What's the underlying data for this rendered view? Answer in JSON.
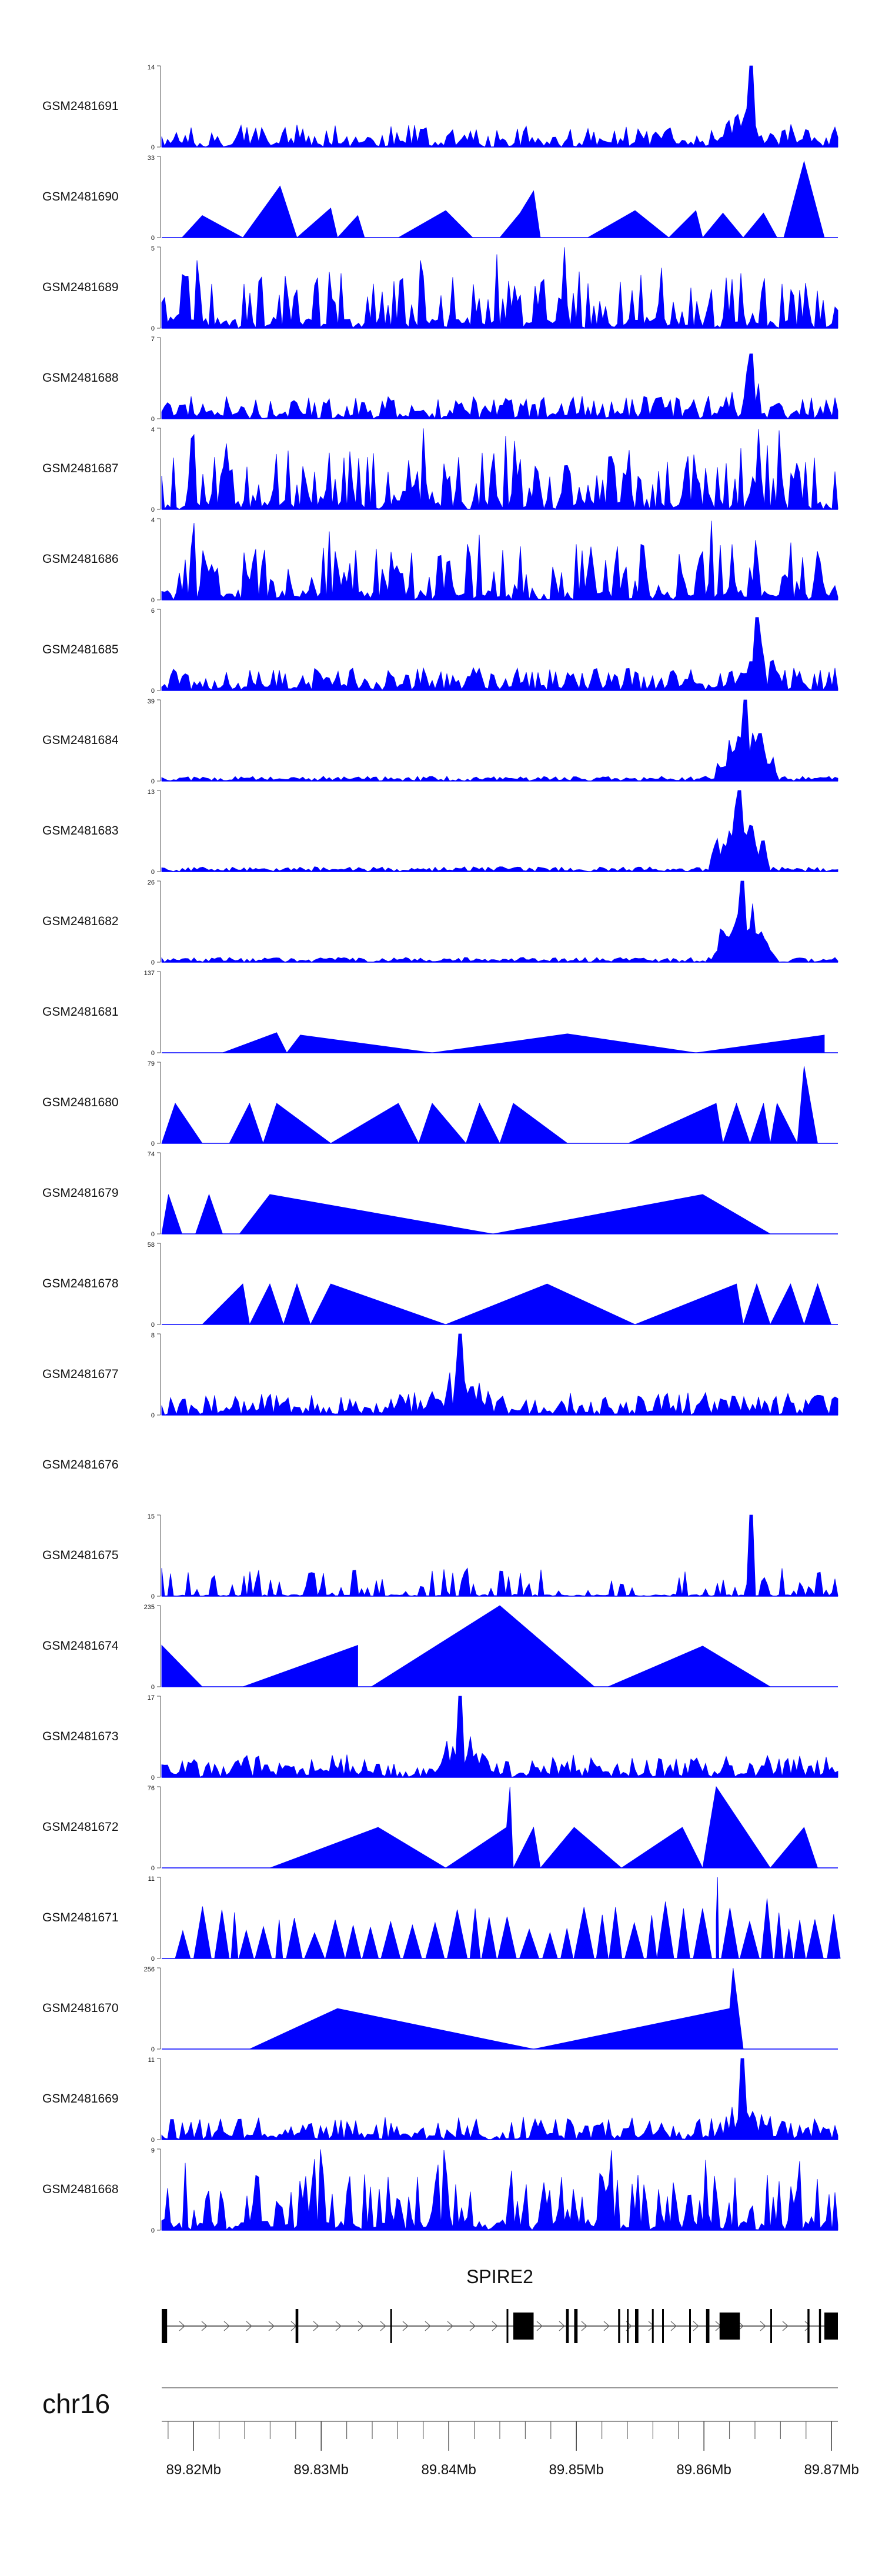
{
  "chart_data": {
    "type": "area",
    "title": "",
    "color": "#0000ff",
    "x_range": [
      89.8175,
      89.8705
    ],
    "tracks": [
      {
        "name": "GSM2481691",
        "ymax": 14,
        "profile": "dense",
        "peak_at": 0.87,
        "peak_height": 1.0
      },
      {
        "name": "GSM2481690",
        "ymax": 33,
        "profile": "tri",
        "points": [
          [
            0.03,
            0
          ],
          [
            0.06,
            9
          ],
          [
            0.12,
            0
          ],
          [
            0.175,
            21
          ],
          [
            0.2,
            0
          ],
          [
            0.25,
            12
          ],
          [
            0.26,
            0
          ],
          [
            0.29,
            9
          ],
          [
            0.3,
            0
          ],
          [
            0.35,
            0
          ],
          [
            0.42,
            11
          ],
          [
            0.46,
            0
          ],
          [
            0.5,
            0
          ],
          [
            0.53,
            10
          ],
          [
            0.55,
            19
          ],
          [
            0.56,
            0
          ],
          [
            0.6,
            0
          ],
          [
            0.63,
            0
          ],
          [
            0.7,
            11
          ],
          [
            0.75,
            0
          ],
          [
            0.79,
            11
          ],
          [
            0.8,
            0
          ],
          [
            0.83,
            10
          ],
          [
            0.86,
            0
          ],
          [
            0.89,
            10
          ],
          [
            0.91,
            0
          ],
          [
            0.92,
            0
          ],
          [
            0.95,
            31
          ],
          [
            0.98,
            0
          ]
        ]
      },
      {
        "name": "GSM2481689",
        "ymax": 5,
        "profile": "spiky"
      },
      {
        "name": "GSM2481688",
        "ymax": 7,
        "profile": "dense",
        "peak_at": 0.87,
        "peak_height": 0.8
      },
      {
        "name": "GSM2481687",
        "ymax": 4,
        "profile": "spiky"
      },
      {
        "name": "GSM2481686",
        "ymax": 4,
        "profile": "spiky"
      },
      {
        "name": "GSM2481685",
        "ymax": 6,
        "profile": "dense",
        "peak_at": 0.88,
        "peak_height": 0.9
      },
      {
        "name": "GSM2481684",
        "ymax": 39,
        "profile": "cluster",
        "peak_at": 0.865,
        "peak_height": 1.0
      },
      {
        "name": "GSM2481683",
        "ymax": 13,
        "profile": "cluster",
        "peak_at": 0.855,
        "peak_height": 1.0
      },
      {
        "name": "GSM2481682",
        "ymax": 26,
        "profile": "cluster",
        "peak_at": 0.86,
        "peak_height": 1.0
      },
      {
        "name": "GSM2481681",
        "ymax": 137,
        "profile": "tri",
        "points": [
          [
            0.09,
            0
          ],
          [
            0.17,
            34
          ],
          [
            0.185,
            0
          ],
          [
            0.205,
            30
          ],
          [
            0.4,
            0
          ],
          [
            0.6,
            32
          ],
          [
            0.79,
            0
          ],
          [
            0.98,
            30
          ]
        ]
      },
      {
        "name": "GSM2481680",
        "ymax": 79,
        "profile": "tri",
        "points": [
          [
            0,
            0
          ],
          [
            0.02,
            39
          ],
          [
            0.06,
            0
          ],
          [
            0.1,
            0
          ],
          [
            0.13,
            39
          ],
          [
            0.15,
            0
          ],
          [
            0.17,
            39
          ],
          [
            0.25,
            0
          ],
          [
            0.35,
            39
          ],
          [
            0.38,
            0
          ],
          [
            0.4,
            39
          ],
          [
            0.45,
            0
          ],
          [
            0.47,
            39
          ],
          [
            0.5,
            0
          ],
          [
            0.52,
            39
          ],
          [
            0.6,
            0
          ],
          [
            0.69,
            0
          ],
          [
            0.82,
            39
          ],
          [
            0.83,
            0
          ],
          [
            0.85,
            39
          ],
          [
            0.87,
            0
          ],
          [
            0.89,
            39
          ],
          [
            0.9,
            0
          ],
          [
            0.91,
            39
          ],
          [
            0.94,
            0
          ],
          [
            0.95,
            75
          ],
          [
            0.97,
            0
          ]
        ]
      },
      {
        "name": "GSM2481679",
        "ymax": 74,
        "profile": "tri",
        "points": [
          [
            0,
            0
          ],
          [
            0.01,
            36
          ],
          [
            0.03,
            0
          ],
          [
            0.05,
            0
          ],
          [
            0.07,
            36
          ],
          [
            0.09,
            0
          ],
          [
            0.115,
            0
          ],
          [
            0.16,
            36
          ],
          [
            0.49,
            0
          ],
          [
            0.8,
            36
          ],
          [
            0.9,
            0
          ]
        ]
      },
      {
        "name": "GSM2481678",
        "ymax": 58,
        "profile": "tri",
        "points": [
          [
            0.06,
            0
          ],
          [
            0.12,
            29
          ],
          [
            0.13,
            0
          ],
          [
            0.16,
            29
          ],
          [
            0.18,
            0
          ],
          [
            0.2,
            29
          ],
          [
            0.22,
            0
          ],
          [
            0.25,
            29
          ],
          [
            0.42,
            0
          ],
          [
            0.57,
            29
          ],
          [
            0.7,
            0
          ],
          [
            0.85,
            29
          ],
          [
            0.86,
            0
          ],
          [
            0.88,
            29
          ],
          [
            0.9,
            0
          ],
          [
            0.93,
            29
          ],
          [
            0.95,
            0
          ],
          [
            0.97,
            29
          ],
          [
            0.99,
            0
          ]
        ]
      },
      {
        "name": "GSM2481677",
        "ymax": 8,
        "profile": "dense",
        "peak_at": 0.44,
        "peak_height": 1.0
      },
      {
        "name": "GSM2481676",
        "ymax": null,
        "profile": "empty"
      },
      {
        "name": "GSM2481675",
        "ymax": 15,
        "profile": "sparse",
        "peak_at": 0.87,
        "peak_height": 1.0
      },
      {
        "name": "GSM2481674",
        "ymax": 235,
        "profile": "tri",
        "points": [
          [
            0,
            0
          ],
          [
            0.0,
            120
          ],
          [
            0.06,
            0
          ],
          [
            0.12,
            0
          ],
          [
            0.29,
            120
          ],
          [
            0.29,
            0
          ],
          [
            0.31,
            0
          ],
          [
            0.5,
            235
          ],
          [
            0.64,
            0
          ],
          [
            0.66,
            0
          ],
          [
            0.8,
            118
          ],
          [
            0.9,
            0
          ]
        ]
      },
      {
        "name": "GSM2481673",
        "ymax": 17,
        "profile": "dense",
        "peak_at": 0.44,
        "peak_height": 1.0
      },
      {
        "name": "GSM2481672",
        "ymax": 76,
        "profile": "tri",
        "points": [
          [
            0.16,
            0
          ],
          [
            0.32,
            38
          ],
          [
            0.42,
            0
          ],
          [
            0.51,
            38
          ],
          [
            0.515,
            76
          ],
          [
            0.52,
            0
          ],
          [
            0.55,
            38
          ],
          [
            0.56,
            0
          ],
          [
            0.61,
            38
          ],
          [
            0.68,
            0
          ],
          [
            0.77,
            38
          ],
          [
            0.8,
            0
          ],
          [
            0.82,
            76
          ],
          [
            0.9,
            0
          ],
          [
            0.95,
            38
          ],
          [
            0.97,
            0
          ]
        ]
      },
      {
        "name": "GSM2481671",
        "ymax": 11,
        "profile": "tri_dense"
      },
      {
        "name": "GSM2481670",
        "ymax": 256,
        "profile": "tri",
        "points": [
          [
            0.13,
            0
          ],
          [
            0.26,
            128
          ],
          [
            0.55,
            0
          ],
          [
            0.84,
            128
          ],
          [
            0.845,
            256
          ],
          [
            0.86,
            0
          ]
        ]
      },
      {
        "name": "GSM2481669",
        "ymax": 11,
        "profile": "dense",
        "peak_at": 0.86,
        "peak_height": 1.0
      },
      {
        "name": "GSM2481668",
        "ymax": 9,
        "profile": "spiky"
      }
    ],
    "gene": {
      "name": "SPIRE2",
      "exons": [
        [
          0.0,
          0.008
        ],
        [
          0.198,
          0.202
        ],
        [
          0.338,
          0.34
        ],
        [
          0.51,
          0.512
        ],
        [
          0.52,
          0.55
        ],
        [
          0.598,
          0.602
        ],
        [
          0.61,
          0.615
        ],
        [
          0.675,
          0.678
        ],
        [
          0.688,
          0.69
        ],
        [
          0.7,
          0.705
        ],
        [
          0.725,
          0.727
        ],
        [
          0.74,
          0.742
        ],
        [
          0.78,
          0.782
        ],
        [
          0.805,
          0.81
        ],
        [
          0.825,
          0.855
        ],
        [
          0.9,
          0.902
        ],
        [
          0.955,
          0.958
        ],
        [
          0.972,
          0.975
        ],
        [
          0.98,
          1.0
        ]
      ]
    },
    "chromosome": "chr16",
    "x_ticks": [
      {
        "value": 89.82,
        "label": "89.82Mb"
      },
      {
        "value": 89.83,
        "label": "89.83Mb"
      },
      {
        "value": 89.84,
        "label": "89.84Mb"
      },
      {
        "value": 89.85,
        "label": "89.85Mb"
      },
      {
        "value": 89.86,
        "label": "89.86Mb"
      },
      {
        "value": 89.87,
        "label": "89.87Mb"
      }
    ]
  }
}
